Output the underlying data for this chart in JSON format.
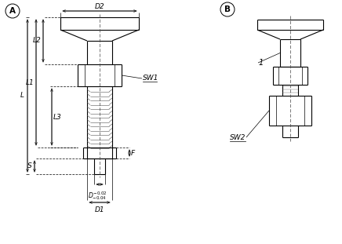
{
  "bg_color": "#ffffff",
  "line_color": "#000000",
  "lw_med": 0.8,
  "lw_thin": 0.5,
  "lw_dim": 0.5,
  "figsize": [
    4.36,
    3.11
  ],
  "dpi": 100,
  "labels": {
    "A": "A",
    "B": "B",
    "D2": "D2",
    "SW1": "SW1",
    "L": "L",
    "L1": "L1",
    "L2": "L2",
    "L3": "L3",
    "S": "S",
    "F": "F",
    "D1": "D1",
    "label1": "1",
    "SW2": "SW2"
  }
}
